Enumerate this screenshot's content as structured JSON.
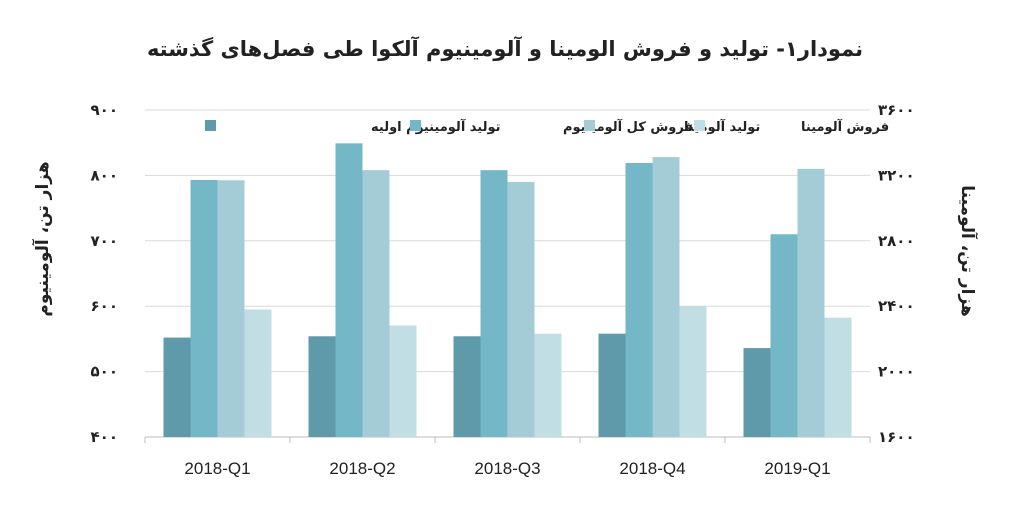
{
  "chart_data": {
    "type": "bar",
    "title": "نمودار۱- تولید و فروش الومینا و آلومینیوم آلکوا طی فصل‌های گذشته",
    "categories": [
      "2018-Q1",
      "2018-Q2",
      "2018-Q3",
      "2018-Q4",
      "2019-Q1"
    ],
    "left_axis": {
      "label": "هزار تن، آلومینیوم",
      "range": [
        400,
        900
      ],
      "ticks": [
        "۴۰۰",
        "۵۰۰",
        "۶۰۰",
        "۷۰۰",
        "۸۰۰",
        "۹۰۰"
      ],
      "tick_values": [
        400,
        500,
        600,
        700,
        800,
        900
      ]
    },
    "right_axis": {
      "label": "هزار تن، آلومینا",
      "range": [
        1600,
        3600
      ],
      "ticks": [
        "۱۶۰۰",
        "۲۰۰۰",
        "۲۴۰۰",
        "۲۸۰۰",
        "۳۲۰۰",
        "۳۶۰۰"
      ],
      "tick_values": [
        1600,
        2000,
        2400,
        2800,
        3200,
        3600
      ]
    },
    "series": [
      {
        "name": "تولید آلومینیوم اولیه",
        "axis": "left",
        "color": "#5f9aab",
        "values": [
          552,
          554,
          554,
          558,
          536
        ]
      },
      {
        "name": "فروش کل آلومینیوم",
        "axis": "left",
        "color": "#74b7c7",
        "values": [
          793,
          849,
          808,
          819,
          710
        ]
      },
      {
        "name": "تولید آلومینا",
        "axis": "right",
        "color": "#a3ccd7",
        "values": [
          3170,
          3232,
          3160,
          3312,
          3240
        ]
      },
      {
        "name": "فروش آلومینا",
        "axis": "right",
        "color": "#c2dee5",
        "values": [
          2380,
          2282,
          2232,
          2400,
          2330
        ]
      }
    ],
    "grid": true,
    "legend_position": "top"
  }
}
